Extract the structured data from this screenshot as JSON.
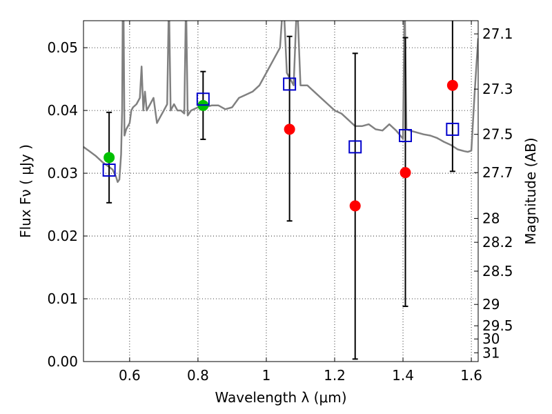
{
  "chart_data": {
    "type": "scatter",
    "xlabel": "Wavelength  λ (μm)",
    "ylabel": "Flux  Fν  ( μJy )",
    "ylabel_right": "Magnitude (AB)",
    "xlim": [
      0.465,
      1.62
    ],
    "ylim": [
      0.0,
      0.0543
    ],
    "grid": true,
    "x_ticks": [
      0.6,
      0.8,
      1.0,
      1.2,
      1.4,
      1.6
    ],
    "x_tick_labels": [
      "0.6",
      "0.8",
      "1",
      "1.2",
      "1.4",
      "1.6"
    ],
    "y_ticks": [
      0.0,
      0.01,
      0.02,
      0.03,
      0.04,
      0.05
    ],
    "y_tick_labels": [
      "0.00",
      "0.01",
      "0.02",
      "0.03",
      "0.04",
      "0.05"
    ],
    "right_ticks": [
      {
        "label": "27.1",
        "flux": 0.0522
      },
      {
        "label": "27.3",
        "flux": 0.0434
      },
      {
        "label": "27.5",
        "flux": 0.0362
      },
      {
        "label": "27.7",
        "flux": 0.0301
      },
      {
        "label": "28",
        "flux": 0.0228
      },
      {
        "label": "28.2",
        "flux": 0.019
      },
      {
        "label": "28.5",
        "flux": 0.0144
      },
      {
        "label": "29",
        "flux": 0.0091
      },
      {
        "label": "29.5",
        "flux": 0.0057
      },
      {
        "label": "30",
        "flux": 0.0036
      },
      {
        "label": "31",
        "flux": 0.0014
      }
    ],
    "colors": {
      "model": "#808080",
      "green": "#00c000",
      "red": "#ff0000",
      "square": "#0000cc",
      "errorbar": "#000000"
    },
    "series": [
      {
        "name": "model spectrum",
        "kind": "line",
        "x": [
          0.465,
          0.48,
          0.5,
          0.52,
          0.54,
          0.55,
          0.555,
          0.56,
          0.565,
          0.57,
          0.575,
          0.578,
          0.58,
          0.582,
          0.585,
          0.59,
          0.6,
          0.605,
          0.61,
          0.62,
          0.63,
          0.635,
          0.64,
          0.645,
          0.65,
          0.66,
          0.67,
          0.68,
          0.69,
          0.7,
          0.71,
          0.715,
          0.72,
          0.73,
          0.74,
          0.75,
          0.76,
          0.765,
          0.77,
          0.78,
          0.8,
          0.82,
          0.84,
          0.86,
          0.88,
          0.9,
          0.92,
          0.94,
          0.96,
          0.98,
          1.0,
          1.02,
          1.04,
          1.05,
          1.06,
          1.07,
          1.08,
          1.09,
          1.1,
          1.12,
          1.14,
          1.16,
          1.18,
          1.2,
          1.22,
          1.24,
          1.26,
          1.28,
          1.3,
          1.32,
          1.34,
          1.36,
          1.38,
          1.4,
          1.405,
          1.41,
          1.42,
          1.44,
          1.46,
          1.48,
          1.5,
          1.52,
          1.54,
          1.56,
          1.58,
          1.59,
          1.6,
          1.61,
          1.62
        ],
        "y": [
          0.0342,
          0.0336,
          0.0328,
          0.0318,
          0.031,
          0.0306,
          0.03,
          0.0295,
          0.0286,
          0.029,
          0.033,
          0.04,
          0.058,
          0.058,
          0.036,
          0.037,
          0.038,
          0.04,
          0.0405,
          0.041,
          0.042,
          0.047,
          0.04,
          0.043,
          0.04,
          0.041,
          0.042,
          0.038,
          0.039,
          0.04,
          0.041,
          0.058,
          0.04,
          0.041,
          0.04,
          0.04,
          0.0395,
          0.058,
          0.0392,
          0.04,
          0.0405,
          0.0405,
          0.0408,
          0.0408,
          0.0402,
          0.0405,
          0.042,
          0.0425,
          0.043,
          0.044,
          0.046,
          0.048,
          0.05,
          0.058,
          0.046,
          0.045,
          0.044,
          0.058,
          0.044,
          0.044,
          0.043,
          0.042,
          0.041,
          0.04,
          0.0395,
          0.0385,
          0.0375,
          0.0375,
          0.0378,
          0.037,
          0.0368,
          0.0378,
          0.0368,
          0.0355,
          0.058,
          0.037,
          0.0368,
          0.0365,
          0.0362,
          0.036,
          0.0356,
          0.035,
          0.0345,
          0.0338,
          0.0335,
          0.0334,
          0.0336,
          0.043,
          0.0515
        ]
      },
      {
        "name": "green points",
        "kind": "points",
        "x": [
          0.54,
          0.815
        ],
        "y": [
          0.0325,
          0.0408
        ]
      },
      {
        "name": "red points",
        "kind": "points",
        "x": [
          1.068,
          1.26,
          1.407,
          1.545
        ],
        "y": [
          0.037,
          0.0248,
          0.0301,
          0.044
        ]
      },
      {
        "name": "blue open squares",
        "kind": "squares",
        "x": [
          0.54,
          0.815,
          1.068,
          1.26,
          1.407,
          1.545
        ],
        "y": [
          0.0305,
          0.0418,
          0.0442,
          0.0342,
          0.036,
          0.037
        ]
      },
      {
        "name": "error bars",
        "kind": "errorbars",
        "x": [
          0.54,
          0.815,
          1.068,
          1.26,
          1.407,
          1.545
        ],
        "low": [
          0.0253,
          0.0354,
          0.0224,
          0.0004,
          0.0088,
          0.0303
        ],
        "high": [
          0.0397,
          0.0462,
          0.0518,
          0.0491,
          0.0516,
          0.0543
        ]
      }
    ]
  }
}
